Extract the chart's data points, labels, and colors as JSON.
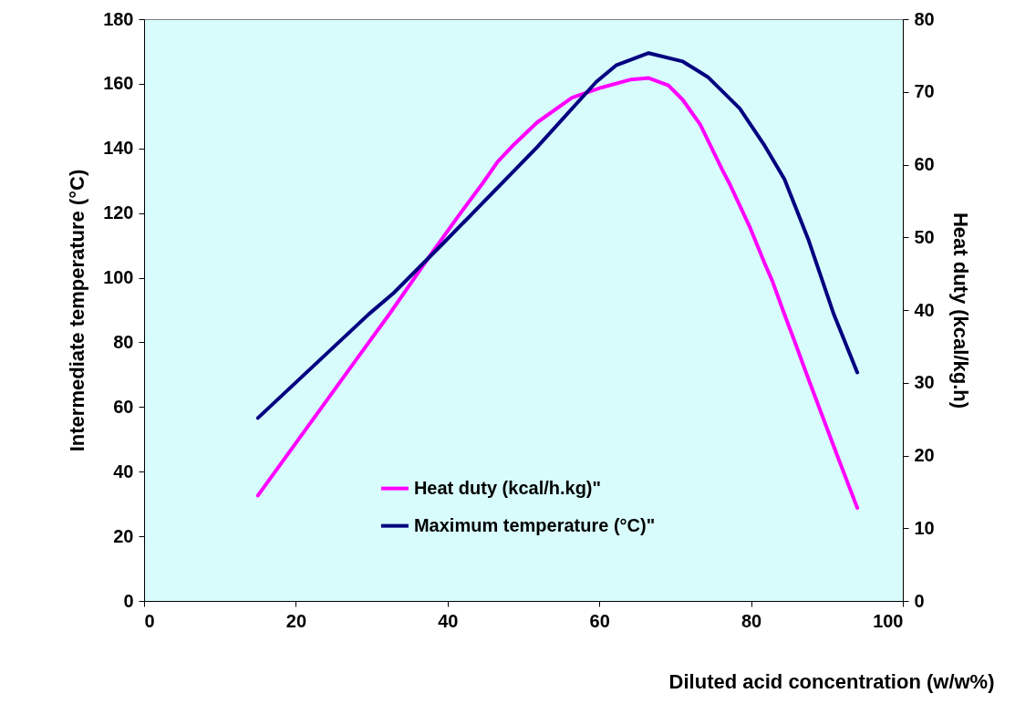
{
  "chart_data": {
    "type": "line",
    "xlabel": "Diluted acid concentration (w/w%)",
    "ylabel": "Intermediate temperature (°C)",
    "y2label": "Heat duty (kcal/kg.h)",
    "xlim": [
      0,
      100
    ],
    "xticks": [
      0,
      20,
      40,
      60,
      80,
      100
    ],
    "ylim": [
      0,
      180
    ],
    "yticks": [
      0,
      20,
      40,
      60,
      80,
      100,
      120,
      140,
      160,
      180
    ],
    "y2lim": [
      0,
      80
    ],
    "y2ticks": [
      0,
      10,
      20,
      30,
      40,
      50,
      60,
      70,
      80
    ],
    "grid": false,
    "legend": "bottom",
    "line_style": "solid",
    "marker": "none",
    "series": [
      {
        "name": "Heat duty (kcal/h.kg)\"",
        "color": "#ff00ff",
        "axis": "y2",
        "x": [
          15,
          27.7,
          32.3,
          38.1,
          41.4,
          44.6,
          46.6,
          48.5,
          51.8,
          56.4,
          60.3,
          64.2,
          66.5,
          69.1,
          71.0,
          73.3,
          76.2,
          77.2,
          79.8,
          81.8,
          82.8,
          84.4,
          85.7,
          87.6,
          91.5,
          94
        ],
        "values": [
          14.5,
          32.8,
          39.4,
          48.1,
          52.9,
          57.4,
          60.4,
          62.5,
          65.8,
          69.2,
          70.6,
          71.7,
          71.9,
          70.9,
          68.9,
          65.5,
          59.3,
          57.3,
          51.5,
          46.4,
          44.0,
          39.4,
          35.8,
          30.4,
          19.6,
          12.8
        ]
      },
      {
        "name": "Maximum temperature (°C)\"",
        "color": "#000080",
        "x": [
          15,
          29.6,
          32.9,
          39.4,
          51.8,
          59.6,
          62.2,
          66.5,
          71.0,
          74.3,
          78.5,
          81.7,
          84.4,
          87.6,
          90.9,
          94
        ],
        "values": [
          56.6,
          88.7,
          95.3,
          110.6,
          140.4,
          160.6,
          165.7,
          169.5,
          166.9,
          162.1,
          152.4,
          141.2,
          130.5,
          111.5,
          88.7,
          70.7
        ]
      }
    ]
  }
}
